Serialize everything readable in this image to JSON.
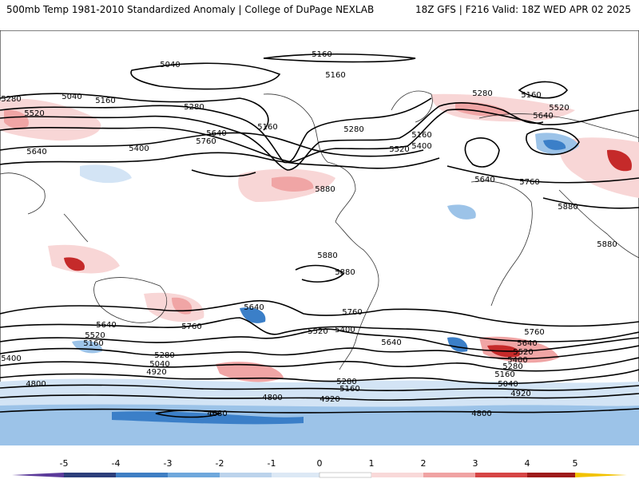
{
  "header": {
    "title_left": "500mb Temp 1981-2010 Standardized Anomaly | College of DuPage NEXLAB",
    "title_right": "18Z GFS | F216 Valid: 18Z WED APR 02 2025"
  },
  "contour_labels": [
    "5040",
    "5160",
    "5160",
    "5280",
    "5040",
    "5160",
    "5280",
    "5520",
    "5640",
    "5400",
    "5760",
    "5160",
    "5640",
    "5280",
    "5160",
    "5520",
    "5400",
    "5280",
    "5160",
    "5520",
    "5640",
    "5640",
    "5760",
    "5880",
    "5880",
    "5880",
    "5880",
    "5880",
    "5640",
    "5760",
    "5760",
    "5640",
    "5520",
    "5160",
    "5400",
    "5520",
    "5400",
    "5640",
    "5760",
    "5640",
    "5520",
    "5400",
    "5280",
    "5160",
    "5280",
    "5040",
    "4920",
    "5280",
    "5160",
    "5040",
    "4920",
    "4800",
    "4800",
    "4920",
    "4680",
    "4800"
  ],
  "colorbar": {
    "ticks": [
      "-5",
      "-4",
      "-3",
      "-2",
      "-1",
      "0",
      "1",
      "2",
      "3",
      "4",
      "5"
    ],
    "colors": [
      "#5b3a9a",
      "#2c3e7a",
      "#3f7fc4",
      "#6fa8dc",
      "#bcd3ec",
      "#dce8f5",
      "#ffffff",
      "#f9d9d9",
      "#f0a3a3",
      "#d64545",
      "#9e1b1b",
      "#6b0d0d",
      "#f2c200"
    ]
  },
  "anomaly_colors": {
    "cold_strong": "#3b7fc8",
    "cold": "#9cc3e8",
    "cold_weak": "#d3e4f5",
    "warm_weak": "#f8d6d6",
    "warm": "#f0a5a5",
    "warm_strong": "#c52a2a"
  }
}
